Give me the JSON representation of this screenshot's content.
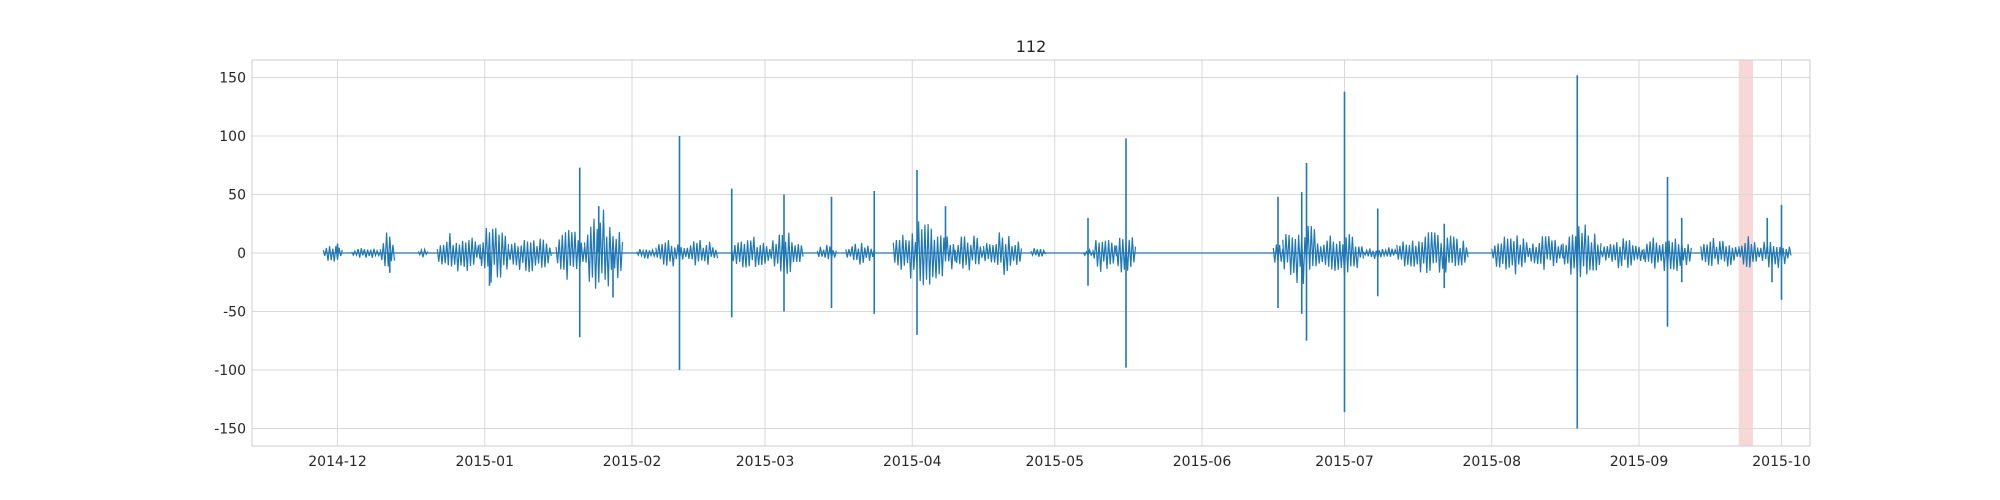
{
  "chart_data": {
    "type": "line",
    "title": "112",
    "xlabel": "",
    "ylabel": "",
    "grid": true,
    "legend": "none",
    "x_range": [
      "2014-11-13",
      "2015-10-07"
    ],
    "ylim": [
      -165,
      165
    ],
    "x_ticks": [
      "2014-12",
      "2015-01",
      "2015-02",
      "2015-03",
      "2015-04",
      "2015-05",
      "2015-06",
      "2015-07",
      "2015-08",
      "2015-09",
      "2015-10"
    ],
    "y_ticks": [
      -150,
      -100,
      -50,
      0,
      50,
      100,
      150
    ],
    "highlight_span": {
      "start": "2015-09-22",
      "end": "2015-09-25",
      "color": "#f8d7d7"
    },
    "series": [
      {
        "color": "#1f77b4",
        "bursts": [
          {
            "start": "2014-11-28",
            "end": "2014-12-02",
            "amp": 8
          },
          {
            "start": "2014-12-04",
            "end": "2014-12-10",
            "amp": 5
          },
          {
            "start": "2014-12-10",
            "end": "2014-12-13",
            "amp": 18
          },
          {
            "start": "2014-12-18",
            "end": "2014-12-20",
            "amp": 4
          },
          {
            "start": "2014-12-22",
            "end": "2014-12-31",
            "amp": 20
          },
          {
            "start": "2014-12-31",
            "end": "2015-01-06",
            "amp": 28
          },
          {
            "start": "2015-01-06",
            "end": "2015-01-15",
            "amp": 18
          },
          {
            "start": "2015-01-16",
            "end": "2015-01-22",
            "amp": 25
          },
          {
            "start": "2015-01-22",
            "end": "2015-01-30",
            "amp": 40
          },
          {
            "start": "2015-02-02",
            "end": "2015-02-06",
            "amp": 5
          },
          {
            "start": "2015-02-06",
            "end": "2015-02-12",
            "amp": 14
          },
          {
            "start": "2015-02-12",
            "end": "2015-02-19",
            "amp": 12
          },
          {
            "start": "2015-02-22",
            "end": "2015-03-02",
            "amp": 15
          },
          {
            "start": "2015-03-02",
            "end": "2015-03-09",
            "amp": 20
          },
          {
            "start": "2015-03-12",
            "end": "2015-03-16",
            "amp": 8
          },
          {
            "start": "2015-03-18",
            "end": "2015-03-24",
            "amp": 10
          },
          {
            "start": "2015-03-28",
            "end": "2015-04-10",
            "amp": 28
          },
          {
            "start": "2015-04-10",
            "end": "2015-04-16",
            "amp": 18
          },
          {
            "start": "2015-04-16",
            "end": "2015-04-24",
            "amp": 20
          },
          {
            "start": "2015-04-26",
            "end": "2015-04-29",
            "amp": 6
          },
          {
            "start": "2015-05-07",
            "end": "2015-05-09",
            "amp": 3
          },
          {
            "start": "2015-05-09",
            "end": "2015-05-14",
            "amp": 18
          },
          {
            "start": "2015-05-14",
            "end": "2015-05-18",
            "amp": 22
          },
          {
            "start": "2015-06-16",
            "end": "2015-06-18",
            "amp": 12
          },
          {
            "start": "2015-06-18",
            "end": "2015-06-26",
            "amp": 30
          },
          {
            "start": "2015-06-26",
            "end": "2015-07-05",
            "amp": 20
          },
          {
            "start": "2015-07-05",
            "end": "2015-07-12",
            "amp": 6
          },
          {
            "start": "2015-07-12",
            "end": "2015-07-27",
            "amp": 20
          },
          {
            "start": "2015-08-01",
            "end": "2015-08-09",
            "amp": 20
          },
          {
            "start": "2015-08-09",
            "end": "2015-08-16",
            "amp": 15
          },
          {
            "start": "2015-08-16",
            "end": "2015-08-24",
            "amp": 25
          },
          {
            "start": "2015-08-24",
            "end": "2015-09-02",
            "amp": 14
          },
          {
            "start": "2015-09-02",
            "end": "2015-09-12",
            "amp": 18
          },
          {
            "start": "2015-09-14",
            "end": "2015-09-22",
            "amp": 15
          },
          {
            "start": "2015-09-22",
            "end": "2015-09-26",
            "amp": 18
          },
          {
            "start": "2015-09-26",
            "end": "2015-10-03",
            "amp": 14
          }
        ],
        "spikes": [
          {
            "date": "2014-12-01",
            "value": 8
          },
          {
            "date": "2014-12-12",
            "value": -17
          },
          {
            "date": "2015-01-02",
            "value": -28
          },
          {
            "date": "2015-01-21",
            "value": 73
          },
          {
            "date": "2015-01-21",
            "value": -72
          },
          {
            "date": "2015-01-25",
            "value": 40
          },
          {
            "date": "2015-01-28",
            "value": -38
          },
          {
            "date": "2015-02-11",
            "value": 100
          },
          {
            "date": "2015-02-11",
            "value": -100
          },
          {
            "date": "2015-02-22",
            "value": 55
          },
          {
            "date": "2015-02-22",
            "value": -55
          },
          {
            "date": "2015-03-05",
            "value": 50
          },
          {
            "date": "2015-03-05",
            "value": -50
          },
          {
            "date": "2015-03-15",
            "value": 48
          },
          {
            "date": "2015-03-15",
            "value": -47
          },
          {
            "date": "2015-03-24",
            "value": 53
          },
          {
            "date": "2015-03-24",
            "value": -52
          },
          {
            "date": "2015-04-02",
            "value": 71
          },
          {
            "date": "2015-04-02",
            "value": -70
          },
          {
            "date": "2015-04-08",
            "value": 40
          },
          {
            "date": "2015-05-08",
            "value": 30
          },
          {
            "date": "2015-05-08",
            "value": -28
          },
          {
            "date": "2015-05-16",
            "value": 98
          },
          {
            "date": "2015-05-16",
            "value": -98
          },
          {
            "date": "2015-06-17",
            "value": 48
          },
          {
            "date": "2015-06-17",
            "value": -47
          },
          {
            "date": "2015-06-22",
            "value": 52
          },
          {
            "date": "2015-06-22",
            "value": -52
          },
          {
            "date": "2015-06-23",
            "value": 77
          },
          {
            "date": "2015-06-23",
            "value": -75
          },
          {
            "date": "2015-07-01",
            "value": 138
          },
          {
            "date": "2015-07-01",
            "value": -136
          },
          {
            "date": "2015-07-08",
            "value": 38
          },
          {
            "date": "2015-07-08",
            "value": -37
          },
          {
            "date": "2015-07-22",
            "value": 25
          },
          {
            "date": "2015-07-22",
            "value": -30
          },
          {
            "date": "2015-08-19",
            "value": 152
          },
          {
            "date": "2015-08-19",
            "value": -150
          },
          {
            "date": "2015-09-07",
            "value": 65
          },
          {
            "date": "2015-09-07",
            "value": -63
          },
          {
            "date": "2015-09-10",
            "value": 30
          },
          {
            "date": "2015-09-10",
            "value": -25
          },
          {
            "date": "2015-09-28",
            "value": 30
          },
          {
            "date": "2015-09-29",
            "value": -25
          },
          {
            "date": "2015-10-01",
            "value": 41
          },
          {
            "date": "2015-10-01",
            "value": -40
          }
        ]
      }
    ]
  }
}
